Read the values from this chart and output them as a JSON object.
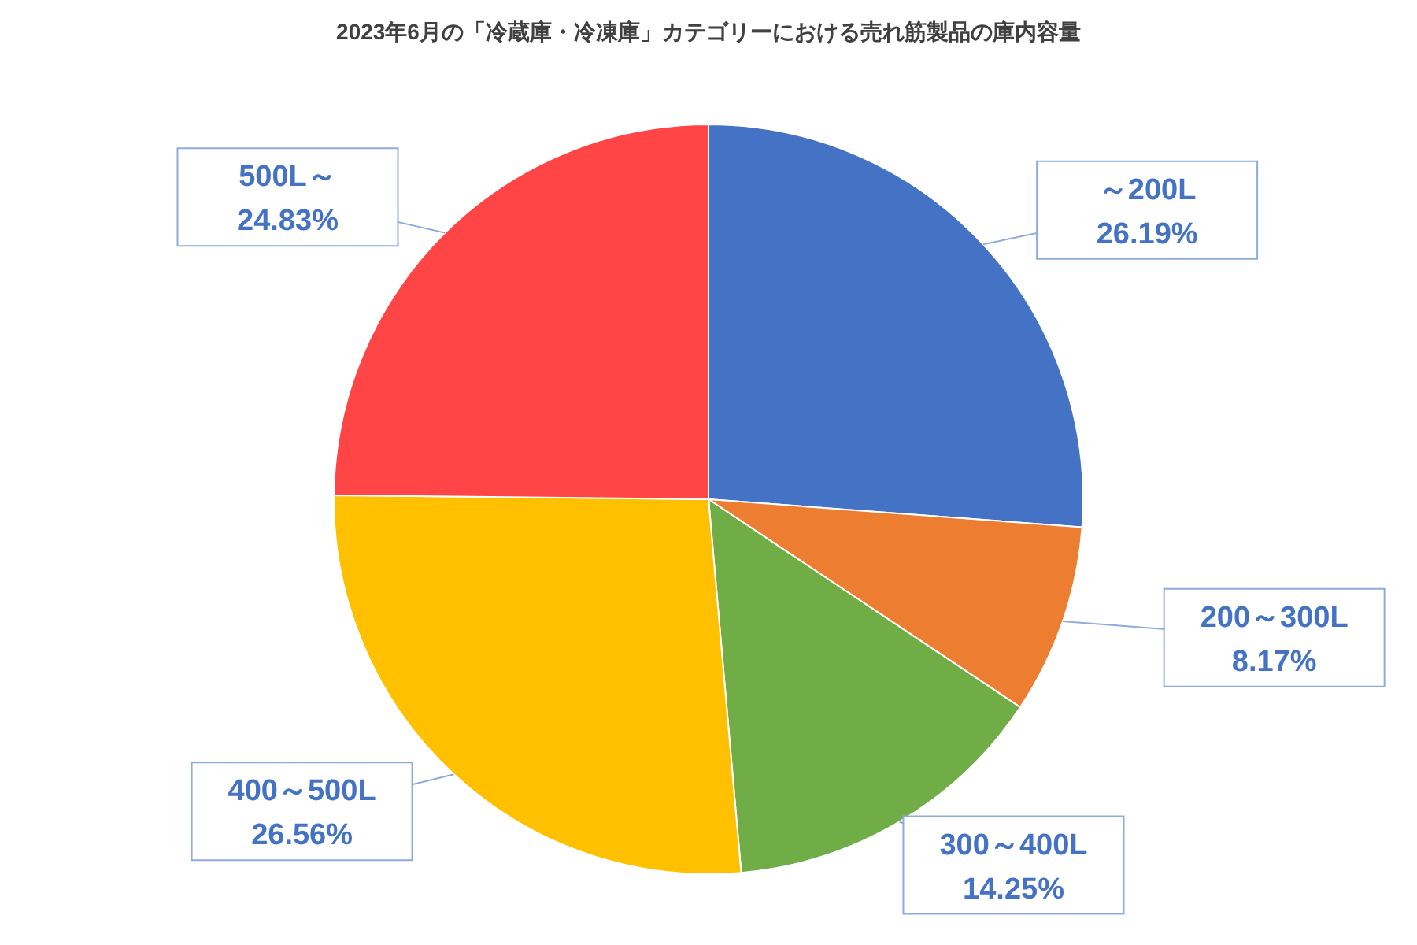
{
  "chart_data": {
    "type": "pie",
    "title": "2023年6月の「冷蔵庫・冷凍庫」カテゴリーにおける売れ筋製品の庫内容量",
    "categories": [
      "～200L",
      "200～300L",
      "300～400L",
      "400～500L",
      "500L～"
    ],
    "values": [
      26.19,
      8.17,
      14.25,
      26.56,
      24.83
    ],
    "value_labels": [
      "26.19%",
      "8.17%",
      "14.25%",
      "26.56%",
      "24.83%"
    ],
    "colors": [
      "#4472c4",
      "#ed7d31",
      "#70ad47",
      "#ffc000",
      "#ff4545"
    ],
    "legend": false
  }
}
